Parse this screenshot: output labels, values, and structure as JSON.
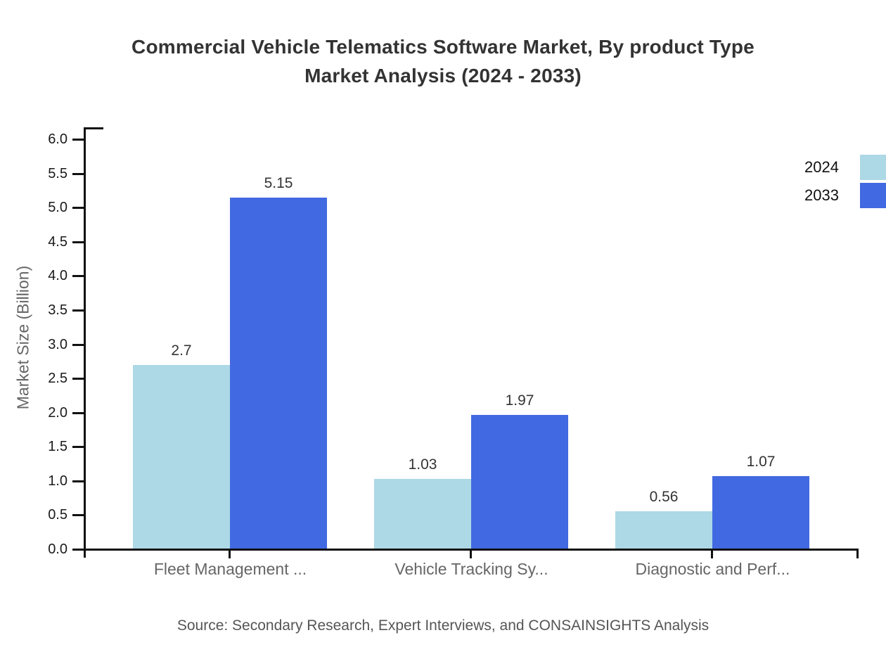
{
  "header": {
    "title_line1": "Commercial Vehicle Telematics Software Market, By product Type",
    "title_line2": "Market Analysis (2024 - 2033)"
  },
  "chart_data": {
    "type": "bar",
    "title": "Commercial Vehicle Telematics Software Market, By product Type Market Analysis (2024 - 2033)",
    "categories": [
      "Fleet Management ...",
      "Vehicle Tracking Sy...",
      "Diagnostic and Perf..."
    ],
    "series": [
      {
        "name": "2024",
        "color": "#ADD8E6",
        "values": [
          2.7,
          1.03,
          0.56
        ]
      },
      {
        "name": "2033",
        "color": "#4169E1",
        "values": [
          5.15,
          1.97,
          1.07
        ]
      }
    ],
    "value_labels": [
      [
        "2.7",
        "1.03",
        "0.56"
      ],
      [
        "5.15",
        "1.97",
        "1.07"
      ]
    ],
    "xlabel": "",
    "ylabel": "Market Size (Billion)",
    "ylim": [
      0,
      6
    ],
    "ytick_step": 0.5,
    "ytick_format_decimals": 1,
    "grid": false,
    "legend_position": "top-right",
    "bar_value_labels_shown": true
  },
  "footer": {
    "source": "Source: Secondary Research, Expert Interviews, and CONSAINSIGHTS Analysis"
  },
  "colors": {
    "background": "#ffffff",
    "series_2024": "#ADD8E6",
    "series_2033": "#4169E1",
    "axis": "#111111",
    "title": "#333333",
    "tick_label": "#1a1a1a",
    "value_label": "#333333",
    "category_label": "#666666",
    "axis_title": "#666666",
    "source": "#555555"
  }
}
